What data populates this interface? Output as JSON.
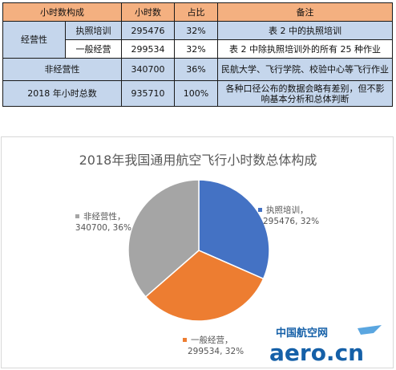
{
  "table": {
    "headers": [
      "小时数构成",
      "小时数",
      "占比",
      "备注"
    ],
    "group_label": "经营性",
    "rows": [
      {
        "name": "执照培训",
        "hours": "295476",
        "pct": "32%",
        "note": "表 2 中的执照培训"
      },
      {
        "name": "一般经营",
        "hours": "299534",
        "pct": "32%",
        "note": "表 2 中除执照培训外的所有 25 种作业"
      },
      {
        "name": "非经营性",
        "hours": "340700",
        "pct": "36%",
        "note": "民航大学、飞行学院、校验中心等飞行作业"
      },
      {
        "name": "2018 年小时总数",
        "hours": "935710",
        "pct": "100%",
        "note_line1": "各种口径公布的数据会略有差别，但不影",
        "note_line2": "响基本分析和总体判断"
      }
    ]
  },
  "chart_data": {
    "type": "pie",
    "title": "2018年我国通用航空飞行小时数总体构成",
    "slices": [
      {
        "name": "执照培训",
        "value": 295476,
        "percent": "32%",
        "label_name": "执照培训，",
        "label_value": "295476, 32%",
        "color": "#4472c4"
      },
      {
        "name": "一般经营",
        "value": 299534,
        "percent": "32%",
        "label_name": "一般经营，",
        "label_value": "299534, 32%",
        "color": "#ed7d31"
      },
      {
        "name": "非经营性",
        "value": 340700,
        "percent": "36%",
        "label_name": "非经营性，",
        "label_value": "340700, 36%",
        "color": "#a5a5a5"
      }
    ]
  },
  "watermark": {
    "cn": "中国航空网",
    "en": "aero.cn"
  }
}
